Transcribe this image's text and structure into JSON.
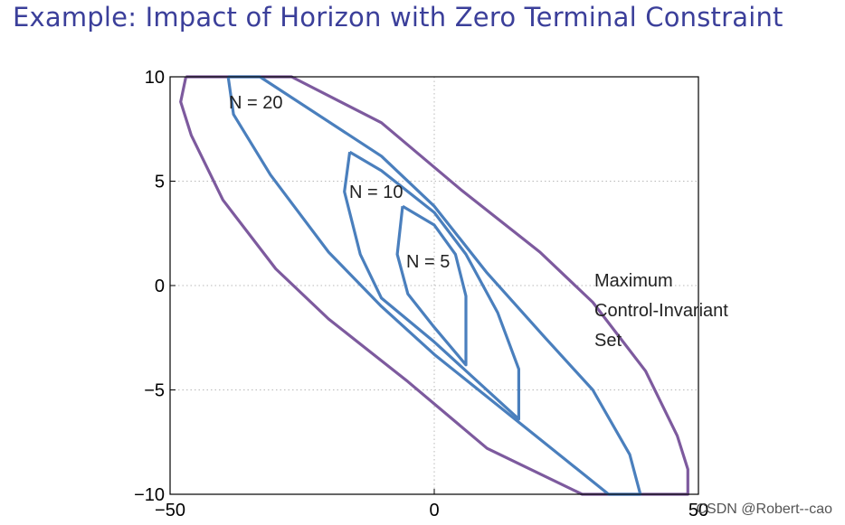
{
  "slide": {
    "title": "Example: Impact of Horizon with Zero Terminal Constraint"
  },
  "watermark": "CSDN @Robert--cao",
  "chart_data": {
    "type": "line",
    "title": "",
    "xlabel": "",
    "ylabel": "",
    "xlim": [
      -50,
      50
    ],
    "ylim": [
      -10,
      10
    ],
    "xticks": [
      -50,
      0,
      50
    ],
    "yticks": [
      -10,
      -5,
      0,
      5,
      10
    ],
    "xtick_labels": [
      "−50",
      "0",
      "50"
    ],
    "ytick_labels": [
      "−10",
      "−5",
      "0",
      "5",
      "10"
    ],
    "grid": true,
    "colors": {
      "horizon_sets": "#4a7fbd",
      "invariant_set": "#7d5a9e"
    },
    "series": [
      {
        "key": "max_inv",
        "label_lines": [
          "Maximum",
          "Control-Invariant",
          "Set"
        ],
        "color": "#7d5a9e",
        "points": [
          [
            -47,
            10
          ],
          [
            -27,
            10
          ],
          [
            -10,
            7.8
          ],
          [
            5,
            4.6
          ],
          [
            20,
            1.6
          ],
          [
            30,
            -0.8
          ],
          [
            40,
            -4.1
          ],
          [
            46,
            -7.2
          ],
          [
            48,
            -8.8
          ],
          [
            48,
            -10
          ],
          [
            28,
            -10
          ],
          [
            10,
            -7.8
          ],
          [
            -5,
            -4.6
          ],
          [
            -20,
            -1.6
          ],
          [
            -30,
            0.8
          ],
          [
            -40,
            4.1
          ],
          [
            -46,
            7.2
          ],
          [
            -48,
            8.8
          ],
          [
            -47,
            10
          ]
        ]
      },
      {
        "key": "n20",
        "label": "N = 20",
        "color": "#4a7fbd",
        "points": [
          [
            -39,
            10
          ],
          [
            -33,
            10
          ],
          [
            -10,
            6.2
          ],
          [
            0,
            3.8
          ],
          [
            10,
            0.6
          ],
          [
            21,
            -2.5
          ],
          [
            30,
            -5
          ],
          [
            37,
            -8.1
          ],
          [
            39,
            -10
          ],
          [
            33,
            -10
          ],
          [
            0,
            -3.3
          ],
          [
            -10,
            -1
          ],
          [
            -20,
            1.6
          ],
          [
            -31,
            5.3
          ],
          [
            -38,
            8.2
          ],
          [
            -39,
            10
          ]
        ]
      },
      {
        "key": "n10",
        "label": "N = 10",
        "color": "#4a7fbd",
        "points": [
          [
            -16,
            6.4
          ],
          [
            -10,
            5.5
          ],
          [
            0,
            3.5
          ],
          [
            6,
            1.5
          ],
          [
            12,
            -1.3
          ],
          [
            16,
            -4
          ],
          [
            16,
            -6.4
          ],
          [
            0,
            -2.7
          ],
          [
            -10,
            -0.6
          ],
          [
            -14,
            1.5
          ],
          [
            -17,
            4.5
          ],
          [
            -16,
            6.4
          ]
        ]
      },
      {
        "key": "n5",
        "label": "N = 5",
        "color": "#4a7fbd",
        "points": [
          [
            -6,
            3.8
          ],
          [
            0,
            2.9
          ],
          [
            4,
            1.5
          ],
          [
            6,
            -0.5
          ],
          [
            6,
            -3.8
          ],
          [
            0,
            -2
          ],
          [
            -5,
            -0.4
          ],
          [
            -7,
            1.5
          ],
          [
            -6,
            3.8
          ]
        ]
      }
    ]
  }
}
